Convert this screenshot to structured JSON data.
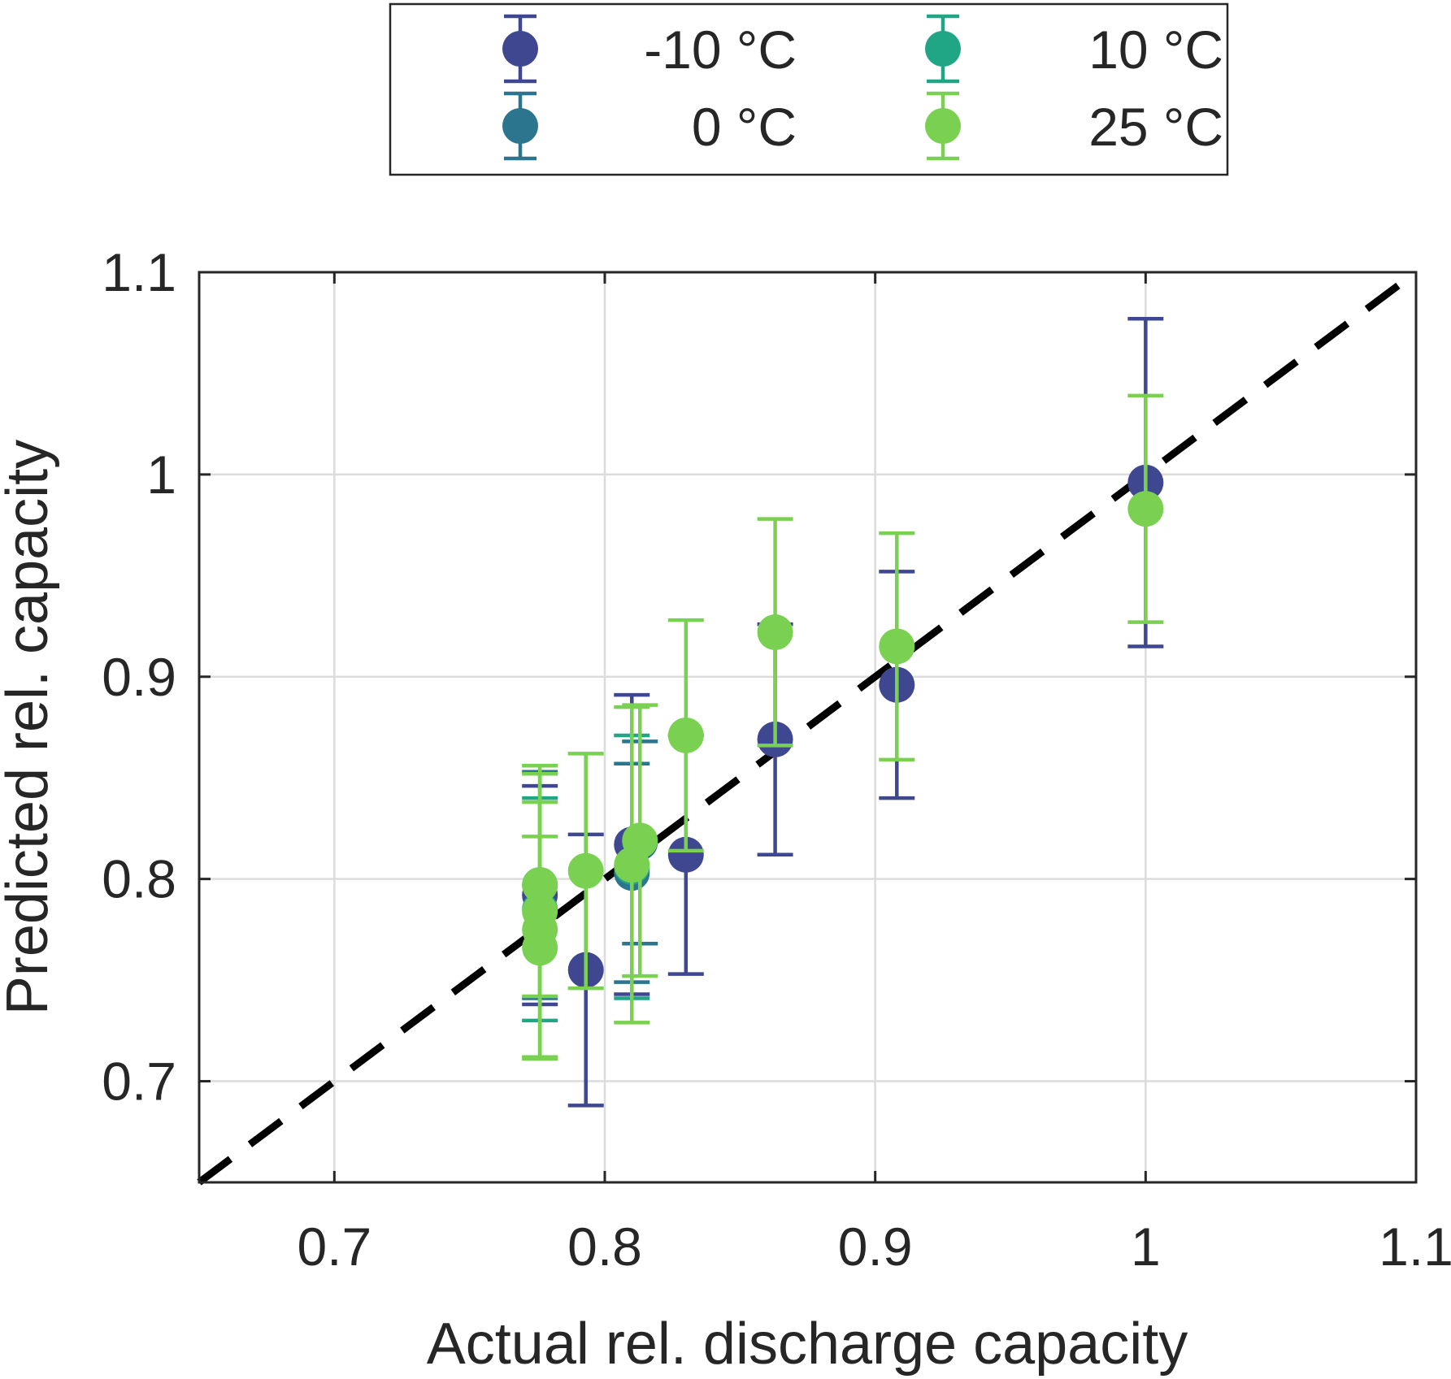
{
  "chart_data": {
    "type": "scatter",
    "title": "",
    "xlabel": "Actual rel. discharge capacity",
    "ylabel": "Predicted rel. capacity",
    "xlim": [
      0.65,
      1.1
    ],
    "ylim": [
      0.65,
      1.1
    ],
    "xticks": [
      0.7,
      0.8,
      0.9,
      1,
      1.1
    ],
    "yticks": [
      0.7,
      0.8,
      0.9,
      1,
      1.1
    ],
    "xtick_labels": [
      "0.7",
      "0.8",
      "0.9",
      "1",
      "1.1"
    ],
    "ytick_labels": [
      "0.7",
      "0.8",
      "0.9",
      "1",
      "1.1"
    ],
    "grid": true,
    "legend_position": "top-outside",
    "reference_line": {
      "style": "dashed",
      "color": "#000000",
      "from": [
        0.65,
        0.65
      ],
      "to": [
        1.1,
        1.1
      ]
    },
    "series": [
      {
        "name": "-10 °C",
        "color": "#3f4790",
        "points": [
          {
            "x": 0.776,
            "y": 0.792,
            "err": 0.054
          },
          {
            "x": 0.793,
            "y": 0.755,
            "err": 0.067
          },
          {
            "x": 0.81,
            "y": 0.817,
            "err": 0.074
          },
          {
            "x": 0.83,
            "y": 0.812,
            "err": 0.059
          },
          {
            "x": 0.863,
            "y": 0.869,
            "err": 0.057
          },
          {
            "x": 0.908,
            "y": 0.896,
            "err": 0.056
          },
          {
            "x": 1.0,
            "y": 0.996,
            "err": 0.081
          }
        ]
      },
      {
        "name": "0 °C",
        "color": "#2b758e",
        "points": [
          {
            "x": 0.776,
            "y": 0.797,
            "err": 0.056
          },
          {
            "x": 0.81,
            "y": 0.803,
            "err": 0.054
          },
          {
            "x": 0.813,
            "y": 0.818,
            "err": 0.05
          }
        ]
      },
      {
        "name": "10 °C",
        "color": "#21a685",
        "points": [
          {
            "x": 0.776,
            "y": 0.785,
            "err": 0.055
          },
          {
            "x": 0.81,
            "y": 0.806,
            "err": 0.065
          }
        ]
      },
      {
        "name": "25 °C",
        "color": "#7ad151",
        "points": [
          {
            "x": 0.776,
            "y": 0.797,
            "err": 0.055
          },
          {
            "x": 0.776,
            "y": 0.784,
            "err": 0.072
          },
          {
            "x": 0.776,
            "y": 0.775,
            "err": 0.063
          },
          {
            "x": 0.776,
            "y": 0.766,
            "err": 0.055
          },
          {
            "x": 0.793,
            "y": 0.804,
            "err": 0.058
          },
          {
            "x": 0.81,
            "y": 0.807,
            "err": 0.078
          },
          {
            "x": 0.813,
            "y": 0.819,
            "err": 0.067
          },
          {
            "x": 0.83,
            "y": 0.871,
            "err": 0.057
          },
          {
            "x": 0.863,
            "y": 0.922,
            "err": 0.056
          },
          {
            "x": 0.908,
            "y": 0.915,
            "err": 0.056
          },
          {
            "x": 1.0,
            "y": 0.983,
            "err": 0.056
          }
        ]
      }
    ]
  }
}
